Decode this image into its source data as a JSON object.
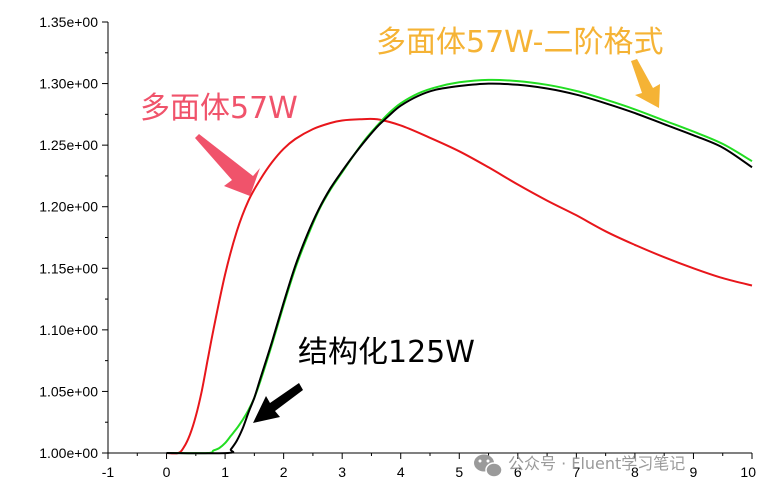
{
  "chart_data": {
    "type": "line",
    "title": "",
    "xlabel": "",
    "ylabel": "",
    "xlim": [
      -1,
      10
    ],
    "ylim": [
      1.0,
      1.35
    ],
    "x_ticks": [
      "-1",
      "0",
      "1",
      "2",
      "3",
      "4",
      "5",
      "6",
      "7",
      "8",
      "9",
      "10"
    ],
    "y_ticks": [
      "1.00e+00",
      "1.05e+00",
      "1.10e+00",
      "1.15e+00",
      "1.20e+00",
      "1.25e+00",
      "1.30e+00",
      "1.35e+00"
    ],
    "grid": false,
    "series": [
      {
        "name": "多面体57W",
        "color": "#e8161b",
        "points": [
          [
            0.0,
            1.0
          ],
          [
            0.2,
            1.0
          ],
          [
            0.3,
            1.005
          ],
          [
            0.4,
            1.015
          ],
          [
            0.5,
            1.03
          ],
          [
            0.6,
            1.05
          ],
          [
            0.7,
            1.075
          ],
          [
            0.8,
            1.1
          ],
          [
            1.0,
            1.145
          ],
          [
            1.2,
            1.18
          ],
          [
            1.4,
            1.205
          ],
          [
            1.6,
            1.222
          ],
          [
            1.8,
            1.236
          ],
          [
            2.0,
            1.247
          ],
          [
            2.2,
            1.255
          ],
          [
            2.5,
            1.263
          ],
          [
            2.8,
            1.268
          ],
          [
            3.0,
            1.27
          ],
          [
            3.3,
            1.271
          ],
          [
            3.6,
            1.271
          ],
          [
            4.0,
            1.266
          ],
          [
            4.5,
            1.256
          ],
          [
            5.0,
            1.245
          ],
          [
            5.5,
            1.232
          ],
          [
            6.0,
            1.218
          ],
          [
            6.5,
            1.205
          ],
          [
            7.0,
            1.193
          ],
          [
            7.5,
            1.18
          ],
          [
            8.0,
            1.169
          ],
          [
            8.5,
            1.159
          ],
          [
            9.0,
            1.15
          ],
          [
            9.5,
            1.142
          ],
          [
            10.0,
            1.136
          ]
        ]
      },
      {
        "name": "多面体57W-二阶格式",
        "color": "#22dd22",
        "points": [
          [
            0.0,
            1.0
          ],
          [
            0.7,
            1.0
          ],
          [
            0.8,
            1.002
          ],
          [
            0.9,
            1.004
          ],
          [
            1.0,
            1.008
          ],
          [
            1.1,
            1.014
          ],
          [
            1.2,
            1.02
          ],
          [
            1.3,
            1.027
          ],
          [
            1.4,
            1.035
          ],
          [
            1.5,
            1.045
          ],
          [
            1.6,
            1.058
          ],
          [
            1.8,
            1.088
          ],
          [
            2.0,
            1.12
          ],
          [
            2.2,
            1.15
          ],
          [
            2.4,
            1.175
          ],
          [
            2.6,
            1.197
          ],
          [
            2.8,
            1.214
          ],
          [
            3.0,
            1.228
          ],
          [
            3.2,
            1.242
          ],
          [
            3.4,
            1.255
          ],
          [
            3.6,
            1.266
          ],
          [
            3.8,
            1.276
          ],
          [
            4.0,
            1.284
          ],
          [
            4.3,
            1.292
          ],
          [
            4.6,
            1.297
          ],
          [
            5.0,
            1.301
          ],
          [
            5.5,
            1.303
          ],
          [
            6.0,
            1.302
          ],
          [
            6.5,
            1.299
          ],
          [
            7.0,
            1.294
          ],
          [
            7.5,
            1.287
          ],
          [
            8.0,
            1.279
          ],
          [
            8.5,
            1.27
          ],
          [
            9.0,
            1.261
          ],
          [
            9.5,
            1.251
          ],
          [
            10.0,
            1.237
          ]
        ]
      },
      {
        "name": "结构化125W",
        "color": "#000000",
        "points": [
          [
            0.0,
            1.0
          ],
          [
            1.05,
            1.0
          ],
          [
            1.1,
            1.003
          ],
          [
            1.2,
            1.01
          ],
          [
            1.3,
            1.02
          ],
          [
            1.4,
            1.033
          ],
          [
            1.5,
            1.045
          ],
          [
            1.6,
            1.06
          ],
          [
            1.8,
            1.09
          ],
          [
            2.0,
            1.122
          ],
          [
            2.2,
            1.152
          ],
          [
            2.4,
            1.177
          ],
          [
            2.6,
            1.198
          ],
          [
            2.8,
            1.215
          ],
          [
            3.0,
            1.229
          ],
          [
            3.2,
            1.242
          ],
          [
            3.4,
            1.254
          ],
          [
            3.6,
            1.265
          ],
          [
            3.8,
            1.274
          ],
          [
            4.0,
            1.282
          ],
          [
            4.3,
            1.29
          ],
          [
            4.6,
            1.295
          ],
          [
            5.0,
            1.298
          ],
          [
            5.5,
            1.3
          ],
          [
            6.0,
            1.299
          ],
          [
            6.5,
            1.296
          ],
          [
            7.0,
            1.291
          ],
          [
            7.5,
            1.284
          ],
          [
            8.0,
            1.276
          ],
          [
            8.5,
            1.267
          ],
          [
            9.0,
            1.258
          ],
          [
            9.5,
            1.248
          ],
          [
            10.0,
            1.232
          ]
        ]
      }
    ],
    "annotations": [
      {
        "text": "多面体57W",
        "color": "#f0536b"
      },
      {
        "text": "多面体57W-二阶格式",
        "color": "#f5b335"
      },
      {
        "text": "结构化125W",
        "color": "#000000"
      }
    ]
  },
  "watermark": {
    "text": "公众号 · Fluent学习笔记",
    "icon": "wechat-icon"
  }
}
